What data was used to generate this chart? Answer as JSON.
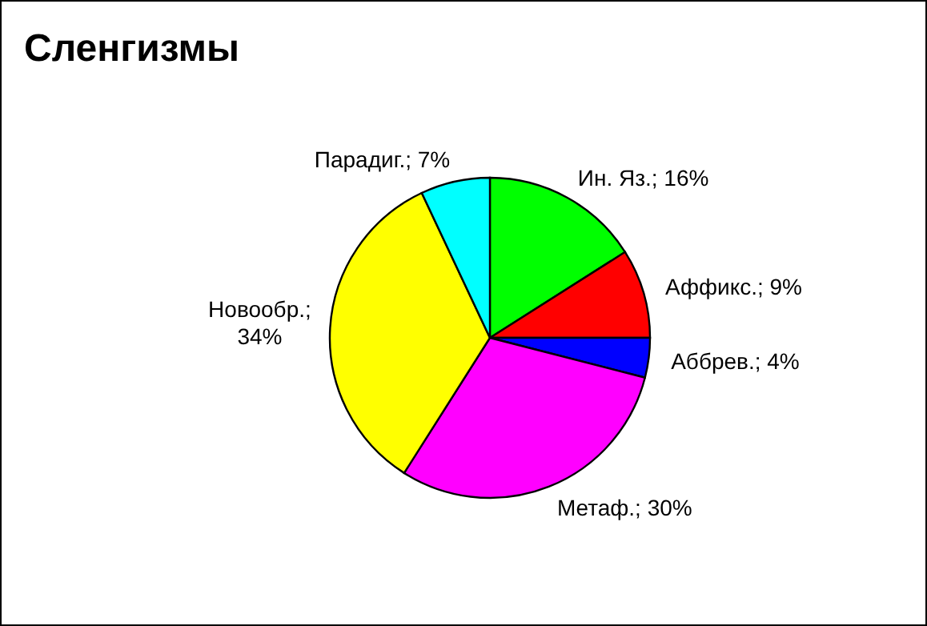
{
  "chart_data": {
    "type": "pie",
    "title": "Сленгизмы",
    "categories": [
      "Ин. Яз.",
      "Аффикс.",
      "Аббрев.",
      "Метаф.",
      "Новообр.",
      "Парадиг."
    ],
    "values": [
      16,
      9,
      4,
      30,
      34,
      7
    ],
    "colors": [
      "#00ff00",
      "#ff0000",
      "#0000ff",
      "#ff00ff",
      "#ffff00",
      "#00ffff"
    ],
    "value_labels": [
      "; 16%",
      "; 9%",
      "; 4%",
      "; 30%",
      "; 34%",
      "; 7%"
    ],
    "legend": false
  }
}
